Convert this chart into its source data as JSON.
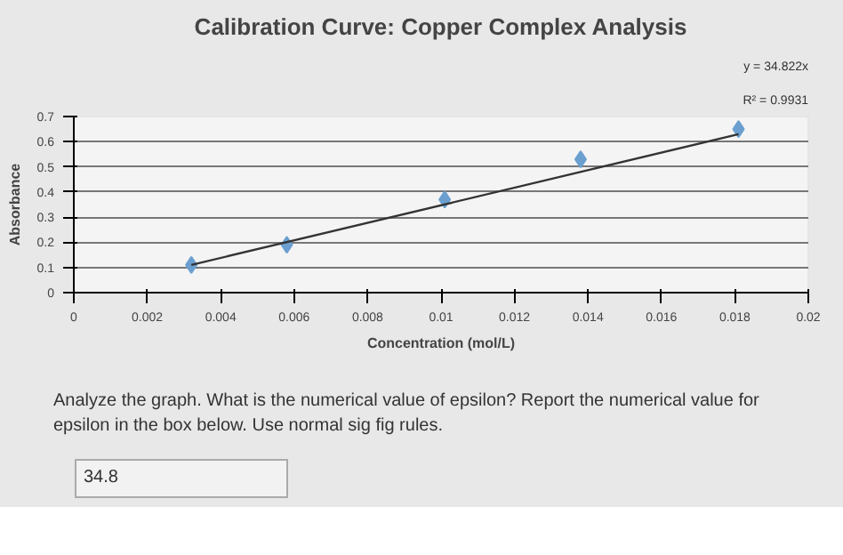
{
  "chart_data": {
    "type": "scatter",
    "title": "Calibration Curve: Copper Complex Analysis",
    "xlabel": "Concentration (mol/L)",
    "ylabel": "Absorbance",
    "series": [
      {
        "marker": "diamond",
        "color": "#6a9fd0",
        "x": [
          0.0032,
          0.0058,
          0.0101,
          0.0138,
          0.0181
        ],
        "values": [
          0.11,
          0.19,
          0.37,
          0.53,
          0.65
        ]
      },
      {
        "type": "line",
        "color": "#333333",
        "x": [
          0.0032,
          0.0181
        ],
        "values": [
          0.11,
          0.63
        ]
      }
    ],
    "grid": "y",
    "xlim": [
      0,
      0.02
    ],
    "xticks": [
      0,
      0.002,
      0.004,
      0.006,
      0.008,
      0.01,
      0.012,
      0.014,
      0.016,
      0.018,
      0.02
    ],
    "ylim": [
      0,
      0.7
    ],
    "yticks": [
      0,
      0.1,
      0.2,
      0.3,
      0.4,
      0.5,
      0.6,
      0.7
    ],
    "annotations": [
      "y = 34.822x",
      "R² = 0.9931",
      "Analyze the graph. What is the numerical value of epsilon? Report the numerical value for epsilon in the box below. Use normal sig fig rules.",
      "34.8"
    ]
  }
}
